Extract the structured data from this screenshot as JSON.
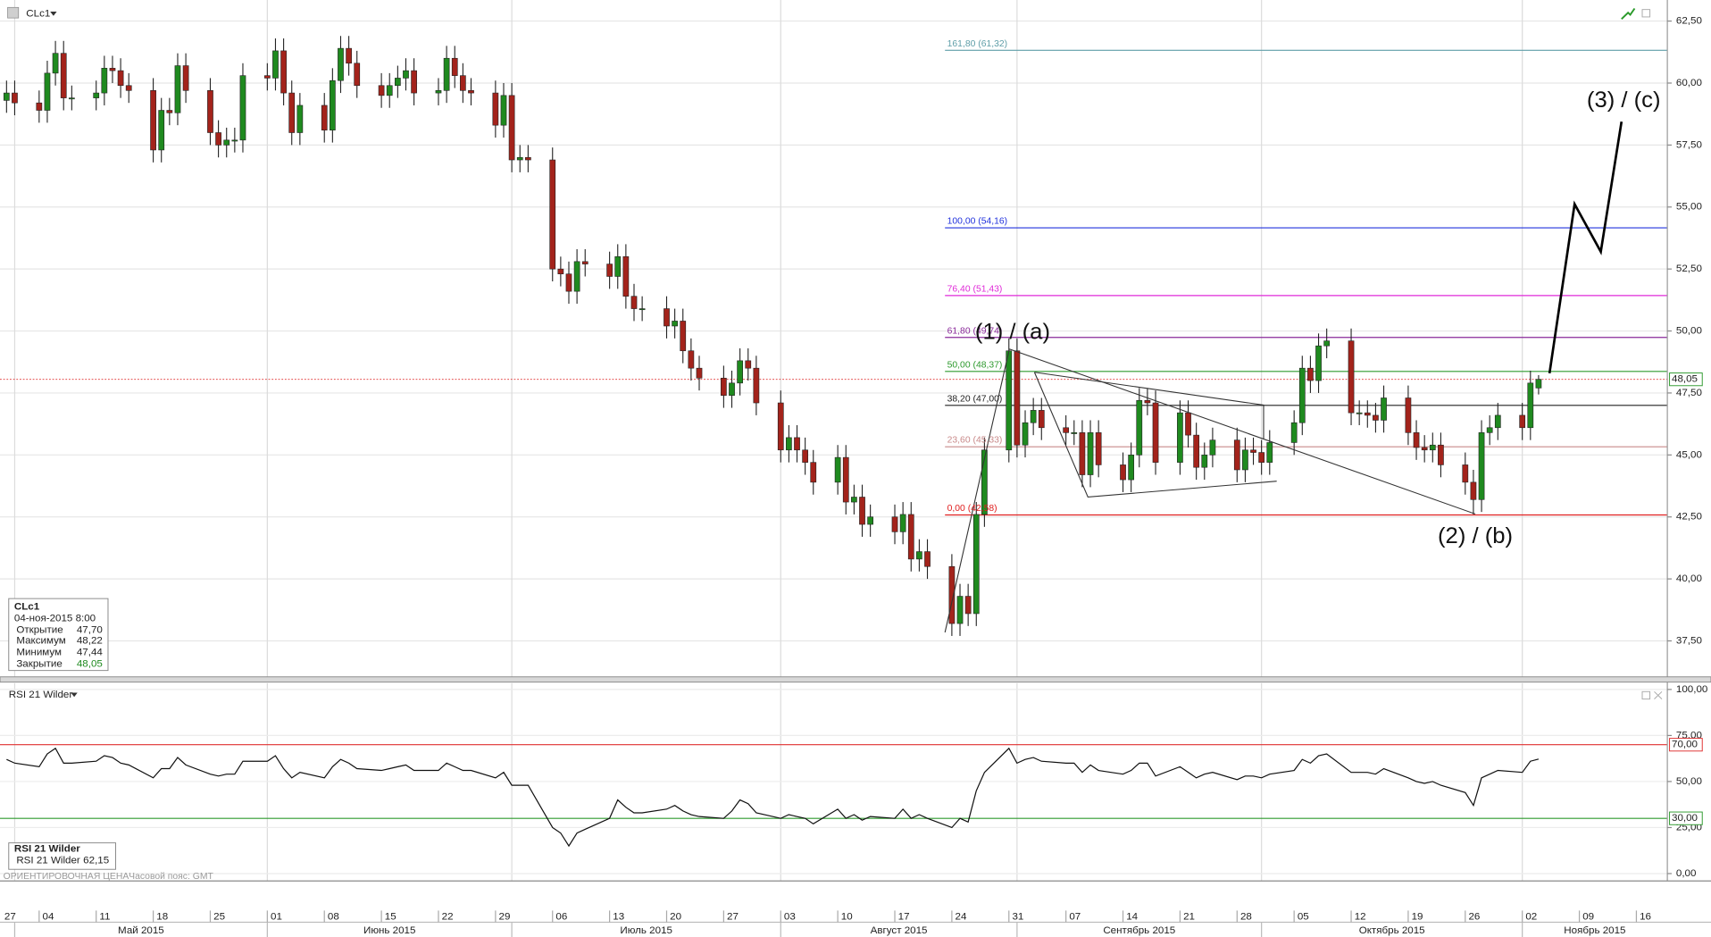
{
  "header": {
    "symbol": "CLc1",
    "rsi_title": "RSI 21 Wilder",
    "note": "ОРИЕНТИРОВОЧНАЯ ЦЕНА",
    "timezone": "Часовой пояс: GMT"
  },
  "info_box": {
    "title": "CLc1",
    "datetime": "04-ноя-2015 8:00",
    "rows": [
      [
        "Открытие",
        "47,70"
      ],
      [
        "Максимум",
        "48,22"
      ],
      [
        "Минимум",
        "47,44"
      ],
      [
        "Закрытие",
        "48,05"
      ]
    ]
  },
  "rsi_box": {
    "title": "RSI 21 Wilder",
    "name": "RSI 21 Wilder",
    "value": "62,15"
  },
  "chart_data": [
    {
      "type": "candlestick",
      "up_color": "#1f8a1f",
      "down_color": "#a3231b",
      "grid": true,
      "x": [
        "2015-04-30",
        "2015-05-01",
        "2015-05-04",
        "2015-05-05",
        "2015-05-06",
        "2015-05-07",
        "2015-05-08",
        "2015-05-11",
        "2015-05-12",
        "2015-05-13",
        "2015-05-14",
        "2015-05-15",
        "2015-05-18",
        "2015-05-19",
        "2015-05-20",
        "2015-05-21",
        "2015-05-22",
        "2015-05-25",
        "2015-05-26",
        "2015-05-27",
        "2015-05-28",
        "2015-05-29",
        "2015-06-01",
        "2015-06-02",
        "2015-06-03",
        "2015-06-04",
        "2015-06-05",
        "2015-06-08",
        "2015-06-09",
        "2015-06-10",
        "2015-06-11",
        "2015-06-12",
        "2015-06-15",
        "2015-06-16",
        "2015-06-17",
        "2015-06-18",
        "2015-06-19",
        "2015-06-22",
        "2015-06-23",
        "2015-06-24",
        "2015-06-25",
        "2015-06-26",
        "2015-06-29",
        "2015-06-30",
        "2015-07-01",
        "2015-07-02",
        "2015-07-03",
        "2015-07-06",
        "2015-07-07",
        "2015-07-08",
        "2015-07-09",
        "2015-07-10",
        "2015-07-13",
        "2015-07-14",
        "2015-07-15",
        "2015-07-16",
        "2015-07-17",
        "2015-07-20",
        "2015-07-21",
        "2015-07-22",
        "2015-07-23",
        "2015-07-24",
        "2015-07-27",
        "2015-07-28",
        "2015-07-29",
        "2015-07-30",
        "2015-07-31",
        "2015-08-03",
        "2015-08-04",
        "2015-08-05",
        "2015-08-06",
        "2015-08-07",
        "2015-08-10",
        "2015-08-11",
        "2015-08-12",
        "2015-08-13",
        "2015-08-14",
        "2015-08-17",
        "2015-08-18",
        "2015-08-19",
        "2015-08-20",
        "2015-08-21",
        "2015-08-24",
        "2015-08-25",
        "2015-08-26",
        "2015-08-27",
        "2015-08-28",
        "2015-08-31",
        "2015-09-01",
        "2015-09-02",
        "2015-09-03",
        "2015-09-04",
        "2015-09-07",
        "2015-09-08",
        "2015-09-09",
        "2015-09-10",
        "2015-09-11",
        "2015-09-14",
        "2015-09-15",
        "2015-09-16",
        "2015-09-17",
        "2015-09-18",
        "2015-09-21",
        "2015-09-22",
        "2015-09-23",
        "2015-09-24",
        "2015-09-25",
        "2015-09-28",
        "2015-09-29",
        "2015-09-30",
        "2015-10-01",
        "2015-10-02",
        "2015-10-05",
        "2015-10-06",
        "2015-10-07",
        "2015-10-08",
        "2015-10-09",
        "2015-10-12",
        "2015-10-13",
        "2015-10-14",
        "2015-10-15",
        "2015-10-16",
        "2015-10-19",
        "2015-10-20",
        "2015-10-21",
        "2015-10-22",
        "2015-10-23",
        "2015-10-26",
        "2015-10-27",
        "2015-10-28",
        "2015-10-29",
        "2015-10-30",
        "2015-11-02",
        "2015-11-03",
        "2015-11-04"
      ],
      "open": [
        59.3,
        59.6,
        59.2,
        58.9,
        60.4,
        61.2,
        59.4,
        59.4,
        59.6,
        60.6,
        60.5,
        59.9,
        59.7,
        57.3,
        58.9,
        58.8,
        60.7,
        59.7,
        58.0,
        57.5,
        57.7,
        57.7,
        60.3,
        60.2,
        61.3,
        59.6,
        58.0,
        59.1,
        58.1,
        60.1,
        61.4,
        60.8,
        59.9,
        59.5,
        59.9,
        60.2,
        60.5,
        59.6,
        59.7,
        61.0,
        60.3,
        59.7,
        59.6,
        58.3,
        59.5,
        56.9,
        57.0,
        56.9,
        52.5,
        52.3,
        51.6,
        52.8,
        52.7,
        52.2,
        53.0,
        51.4,
        50.9,
        50.9,
        50.2,
        50.4,
        49.2,
        48.5,
        48.1,
        47.4,
        47.9,
        48.8,
        48.5,
        47.1,
        45.2,
        45.7,
        45.2,
        44.7,
        43.9,
        44.9,
        43.1,
        43.3,
        42.2,
        42.5,
        41.9,
        42.6,
        40.8,
        41.1,
        40.5,
        38.2,
        39.3,
        38.6,
        42.6,
        45.2,
        49.2,
        45.4,
        46.3,
        46.8,
        46.1,
        45.9,
        45.9,
        44.2,
        45.9,
        44.6,
        44.0,
        45.0,
        47.2,
        47.1,
        44.7,
        46.7,
        45.8,
        44.5,
        45.0,
        45.6,
        44.4,
        45.2,
        45.1,
        44.7,
        45.5,
        46.3,
        48.5,
        48.0,
        49.4,
        49.6,
        46.7,
        46.7,
        46.6,
        46.4,
        47.3,
        45.9,
        45.3,
        45.2,
        45.4,
        44.6,
        43.9,
        43.2,
        45.9,
        46.1,
        46.6,
        46.1,
        47.7
      ],
      "high": [
        60.1,
        60.1,
        59.7,
        60.9,
        61.7,
        61.7,
        59.9,
        60.1,
        61.1,
        61.1,
        61.0,
        60.4,
        60.2,
        59.4,
        59.4,
        61.2,
        61.2,
        60.2,
        58.5,
        58.2,
        58.2,
        60.8,
        60.8,
        61.8,
        61.8,
        60.1,
        59.6,
        59.6,
        60.6,
        61.9,
        61.9,
        61.3,
        60.4,
        60.4,
        60.7,
        61.0,
        61.0,
        60.2,
        61.5,
        61.5,
        60.8,
        60.2,
        60.1,
        60.0,
        60.0,
        57.5,
        57.5,
        57.4,
        53.0,
        52.8,
        53.3,
        53.3,
        53.2,
        53.5,
        53.5,
        51.9,
        51.4,
        51.4,
        50.9,
        50.9,
        49.7,
        49.0,
        48.6,
        48.4,
        49.3,
        49.3,
        49.0,
        47.6,
        46.2,
        46.2,
        45.7,
        45.2,
        45.4,
        45.4,
        43.8,
        43.8,
        43.0,
        43.0,
        43.1,
        43.1,
        41.6,
        41.6,
        41.0,
        39.8,
        39.8,
        43.1,
        45.7,
        49.7,
        49.7,
        46.8,
        47.3,
        47.3,
        46.6,
        46.4,
        46.4,
        46.4,
        46.4,
        45.1,
        45.5,
        47.7,
        47.7,
        47.6,
        47.2,
        47.2,
        46.3,
        45.5,
        46.1,
        46.1,
        45.7,
        45.7,
        45.6,
        46.0,
        46.8,
        49.0,
        49.0,
        49.9,
        50.1,
        50.1,
        47.2,
        47.2,
        47.1,
        47.8,
        47.8,
        46.4,
        45.8,
        45.9,
        45.9,
        45.1,
        44.4,
        46.4,
        46.6,
        47.1,
        47.1,
        48.4,
        48.22
      ],
      "low": [
        58.8,
        58.7,
        58.4,
        58.4,
        59.9,
        58.9,
        58.9,
        58.9,
        59.1,
        60.0,
        59.4,
        59.2,
        56.8,
        56.8,
        58.3,
        58.3,
        59.2,
        57.5,
        57.0,
        57.0,
        57.2,
        57.2,
        59.7,
        59.7,
        59.1,
        57.5,
        57.5,
        57.6,
        57.6,
        59.6,
        60.3,
        59.4,
        59.0,
        59.0,
        59.4,
        59.7,
        59.1,
        59.1,
        59.2,
        59.8,
        59.2,
        59.1,
        57.8,
        57.8,
        56.4,
        56.4,
        56.4,
        52.0,
        51.8,
        51.1,
        51.1,
        52.2,
        51.7,
        51.7,
        50.9,
        50.4,
        50.4,
        49.7,
        49.7,
        48.7,
        48.0,
        47.6,
        46.9,
        46.9,
        47.4,
        48.0,
        46.6,
        44.7,
        44.7,
        44.7,
        44.2,
        43.4,
        43.4,
        42.6,
        42.6,
        41.7,
        41.7,
        41.4,
        41.4,
        40.3,
        40.3,
        40.0,
        37.7,
        37.7,
        38.1,
        38.1,
        42.1,
        44.7,
        44.9,
        44.9,
        45.8,
        45.6,
        45.4,
        45.4,
        43.7,
        43.7,
        44.1,
        43.5,
        43.5,
        44.5,
        46.6,
        44.2,
        44.2,
        45.3,
        44.0,
        44.0,
        44.5,
        43.9,
        43.9,
        44.6,
        44.2,
        44.2,
        45.0,
        45.8,
        47.5,
        47.5,
        48.9,
        46.2,
        46.2,
        46.1,
        45.9,
        45.9,
        45.4,
        44.8,
        44.7,
        44.7,
        44.1,
        43.4,
        42.6,
        42.7,
        45.4,
        45.6,
        45.6,
        45.6,
        47.44
      ],
      "close": [
        59.6,
        59.2,
        58.9,
        60.4,
        61.2,
        59.4,
        59.4,
        59.6,
        60.6,
        60.5,
        59.9,
        59.7,
        57.3,
        58.9,
        58.8,
        60.7,
        59.7,
        58.0,
        57.5,
        57.7,
        57.7,
        60.3,
        60.2,
        61.3,
        59.6,
        58.0,
        59.1,
        58.1,
        60.1,
        61.4,
        60.8,
        59.9,
        59.5,
        59.9,
        60.2,
        60.5,
        59.6,
        59.7,
        61.0,
        60.3,
        59.7,
        59.6,
        58.3,
        59.5,
        56.9,
        57.0,
        56.9,
        52.5,
        52.3,
        51.6,
        52.8,
        52.7,
        52.2,
        53.0,
        51.4,
        50.9,
        50.9,
        50.2,
        50.4,
        49.2,
        48.5,
        48.1,
        47.4,
        47.9,
        48.8,
        48.5,
        47.1,
        45.2,
        45.7,
        45.2,
        44.7,
        43.9,
        44.9,
        43.1,
        43.3,
        42.2,
        42.5,
        41.9,
        42.6,
        40.8,
        41.1,
        40.5,
        38.2,
        39.3,
        38.6,
        42.6,
        45.2,
        49.2,
        45.4,
        46.3,
        46.8,
        46.1,
        45.9,
        45.9,
        44.2,
        45.9,
        44.6,
        44.0,
        45.0,
        47.2,
        47.1,
        44.7,
        46.7,
        45.8,
        44.5,
        45.0,
        45.6,
        44.4,
        45.2,
        45.1,
        44.7,
        45.5,
        46.3,
        48.5,
        48.0,
        49.4,
        49.6,
        46.7,
        46.7,
        46.6,
        46.4,
        47.3,
        45.9,
        45.3,
        45.2,
        45.4,
        44.6,
        43.9,
        43.2,
        45.9,
        46.1,
        46.6,
        46.1,
        47.9,
        48.05
      ],
      "ylim": [
        36.05,
        63.35
      ],
      "yticks": [
        {
          "value": 62.5,
          "label": "62,50"
        },
        {
          "value": 60,
          "label": "60,00"
        },
        {
          "value": 57.5,
          "label": "57,50"
        },
        {
          "value": 55,
          "label": "55,00"
        },
        {
          "value": 52.5,
          "label": "52,50"
        },
        {
          "value": 50,
          "label": "50,00"
        },
        {
          "value": 47.5,
          "label": "47,50"
        },
        {
          "value": 45,
          "label": "45,00"
        },
        {
          "value": 42.5,
          "label": "42,50"
        },
        {
          "value": 40,
          "label": "40,00"
        },
        {
          "value": 37.5,
          "label": "37,50"
        }
      ],
      "xticks": [
        {
          "value": "2015-04-27",
          "label": "27"
        },
        {
          "value": "2015-05-04",
          "label": "04"
        },
        {
          "value": "2015-05-11",
          "label": "11"
        },
        {
          "value": "2015-05-18",
          "label": "18"
        },
        {
          "value": "2015-05-25",
          "label": "25"
        },
        {
          "value": "2015-06-01",
          "label": "01"
        },
        {
          "value": "2015-06-08",
          "label": "08"
        },
        {
          "value": "2015-06-15",
          "label": "15"
        },
        {
          "value": "2015-06-22",
          "label": "22"
        },
        {
          "value": "2015-06-29",
          "label": "29"
        },
        {
          "value": "2015-07-06",
          "label": "06"
        },
        {
          "value": "2015-07-13",
          "label": "13"
        },
        {
          "value": "2015-07-20",
          "label": "20"
        },
        {
          "value": "2015-07-27",
          "label": "27"
        },
        {
          "value": "2015-08-03",
          "label": "03"
        },
        {
          "value": "2015-08-10",
          "label": "10"
        },
        {
          "value": "2015-08-17",
          "label": "17"
        },
        {
          "value": "2015-08-24",
          "label": "24"
        },
        {
          "value": "2015-08-31",
          "label": "31"
        },
        {
          "value": "2015-09-07",
          "label": "07"
        },
        {
          "value": "2015-09-14",
          "label": "14"
        },
        {
          "value": "2015-09-21",
          "label": "21"
        },
        {
          "value": "2015-09-28",
          "label": "28"
        },
        {
          "value": "2015-10-05",
          "label": "05"
        },
        {
          "value": "2015-10-12",
          "label": "12"
        },
        {
          "value": "2015-10-19",
          "label": "19"
        },
        {
          "value": "2015-10-26",
          "label": "26"
        },
        {
          "value": "2015-11-02",
          "label": "02"
        },
        {
          "value": "2015-11-09",
          "label": "09"
        },
        {
          "value": "2015-11-16",
          "label": "16"
        }
      ],
      "month_labels": [
        {
          "value": "2015-05",
          "label": "Май 2015"
        },
        {
          "value": "2015-06",
          "label": "Июнь 2015"
        },
        {
          "value": "2015-07",
          "label": "Июль 2015"
        },
        {
          "value": "2015-08",
          "label": "Август 2015"
        },
        {
          "value": "2015-09",
          "label": "Сентябрь 2015"
        },
        {
          "value": "2015-10",
          "label": "Октябрь 2015"
        },
        {
          "value": "2015-11",
          "label": "Ноябрь 2015"
        }
      ],
      "levels": [
        {
          "value": 61.32,
          "label": "161,80 (61,32)",
          "color": "#5f9ea8"
        },
        {
          "value": 54.16,
          "label": "100,00 (54,16)",
          "color": "#2233dd"
        },
        {
          "value": 51.43,
          "label": "76,40 (51,43)",
          "color": "#e02ad8"
        },
        {
          "value": 49.74,
          "label": "61,80 (49,74)",
          "color": "#8a2a9a"
        },
        {
          "value": 48.37,
          "label": "50,00 (48,37)",
          "color": "#2e9a2e"
        },
        {
          "value": 47.0,
          "label": "38,20 (47,00)",
          "color": "#222222"
        },
        {
          "value": 45.33,
          "label": "23,60 (45,33)",
          "color": "#c98a8a"
        },
        {
          "value": 42.58,
          "label": "0,00 (42,58)",
          "color": "#e02020"
        }
      ],
      "last_price": {
        "value": 48.05,
        "label": "48,05",
        "color": "#e03030"
      },
      "annotations": [
        "(1) / (a)",
        "(2) / (b)",
        "(3) / (c)"
      ]
    },
    {
      "type": "line",
      "name": "RSI 21 Wilder",
      "color": "#111111",
      "values": [
        62,
        60,
        58,
        65,
        68,
        60,
        60,
        61,
        64,
        63,
        60,
        59,
        52,
        57,
        57,
        63,
        59,
        54,
        53,
        54,
        54,
        61,
        61,
        64,
        57,
        52,
        55,
        52,
        58,
        62,
        60,
        57,
        56,
        57,
        58,
        59,
        56,
        56,
        60,
        58,
        56,
        56,
        52,
        55,
        48,
        48,
        48,
        25,
        22,
        15,
        22,
        24,
        30,
        40,
        36,
        33,
        33,
        35,
        37,
        34,
        32,
        31,
        30,
        34,
        40,
        38,
        33,
        30,
        32,
        31,
        30,
        27,
        35,
        30,
        32,
        29,
        31,
        30,
        35,
        30,
        32,
        30,
        25,
        30,
        28,
        45,
        55,
        68,
        60,
        62,
        63,
        61,
        60,
        60,
        55,
        59,
        56,
        54,
        56,
        60,
        60,
        53,
        58,
        55,
        52,
        54,
        55,
        51,
        53,
        53,
        52,
        54,
        56,
        62,
        60,
        64,
        65,
        55,
        55,
        55,
        54,
        57,
        52,
        50,
        49,
        50,
        48,
        44,
        37,
        52,
        54,
        56,
        55,
        61,
        62.15
      ],
      "ylim": [
        -4,
        103.4
      ],
      "yticks": [
        {
          "value": 100,
          "label": "100,00"
        },
        {
          "value": 75,
          "label": "75,00"
        },
        {
          "value": 50,
          "label": "50,00"
        },
        {
          "value": 25,
          "label": "25,00"
        },
        {
          "value": 0,
          "label": "0,00"
        }
      ],
      "levels": [
        {
          "value": 70,
          "label": "70,00",
          "color": "#e03030"
        },
        {
          "value": 30,
          "label": "30,00",
          "color": "#2e9a2e"
        }
      ]
    }
  ]
}
